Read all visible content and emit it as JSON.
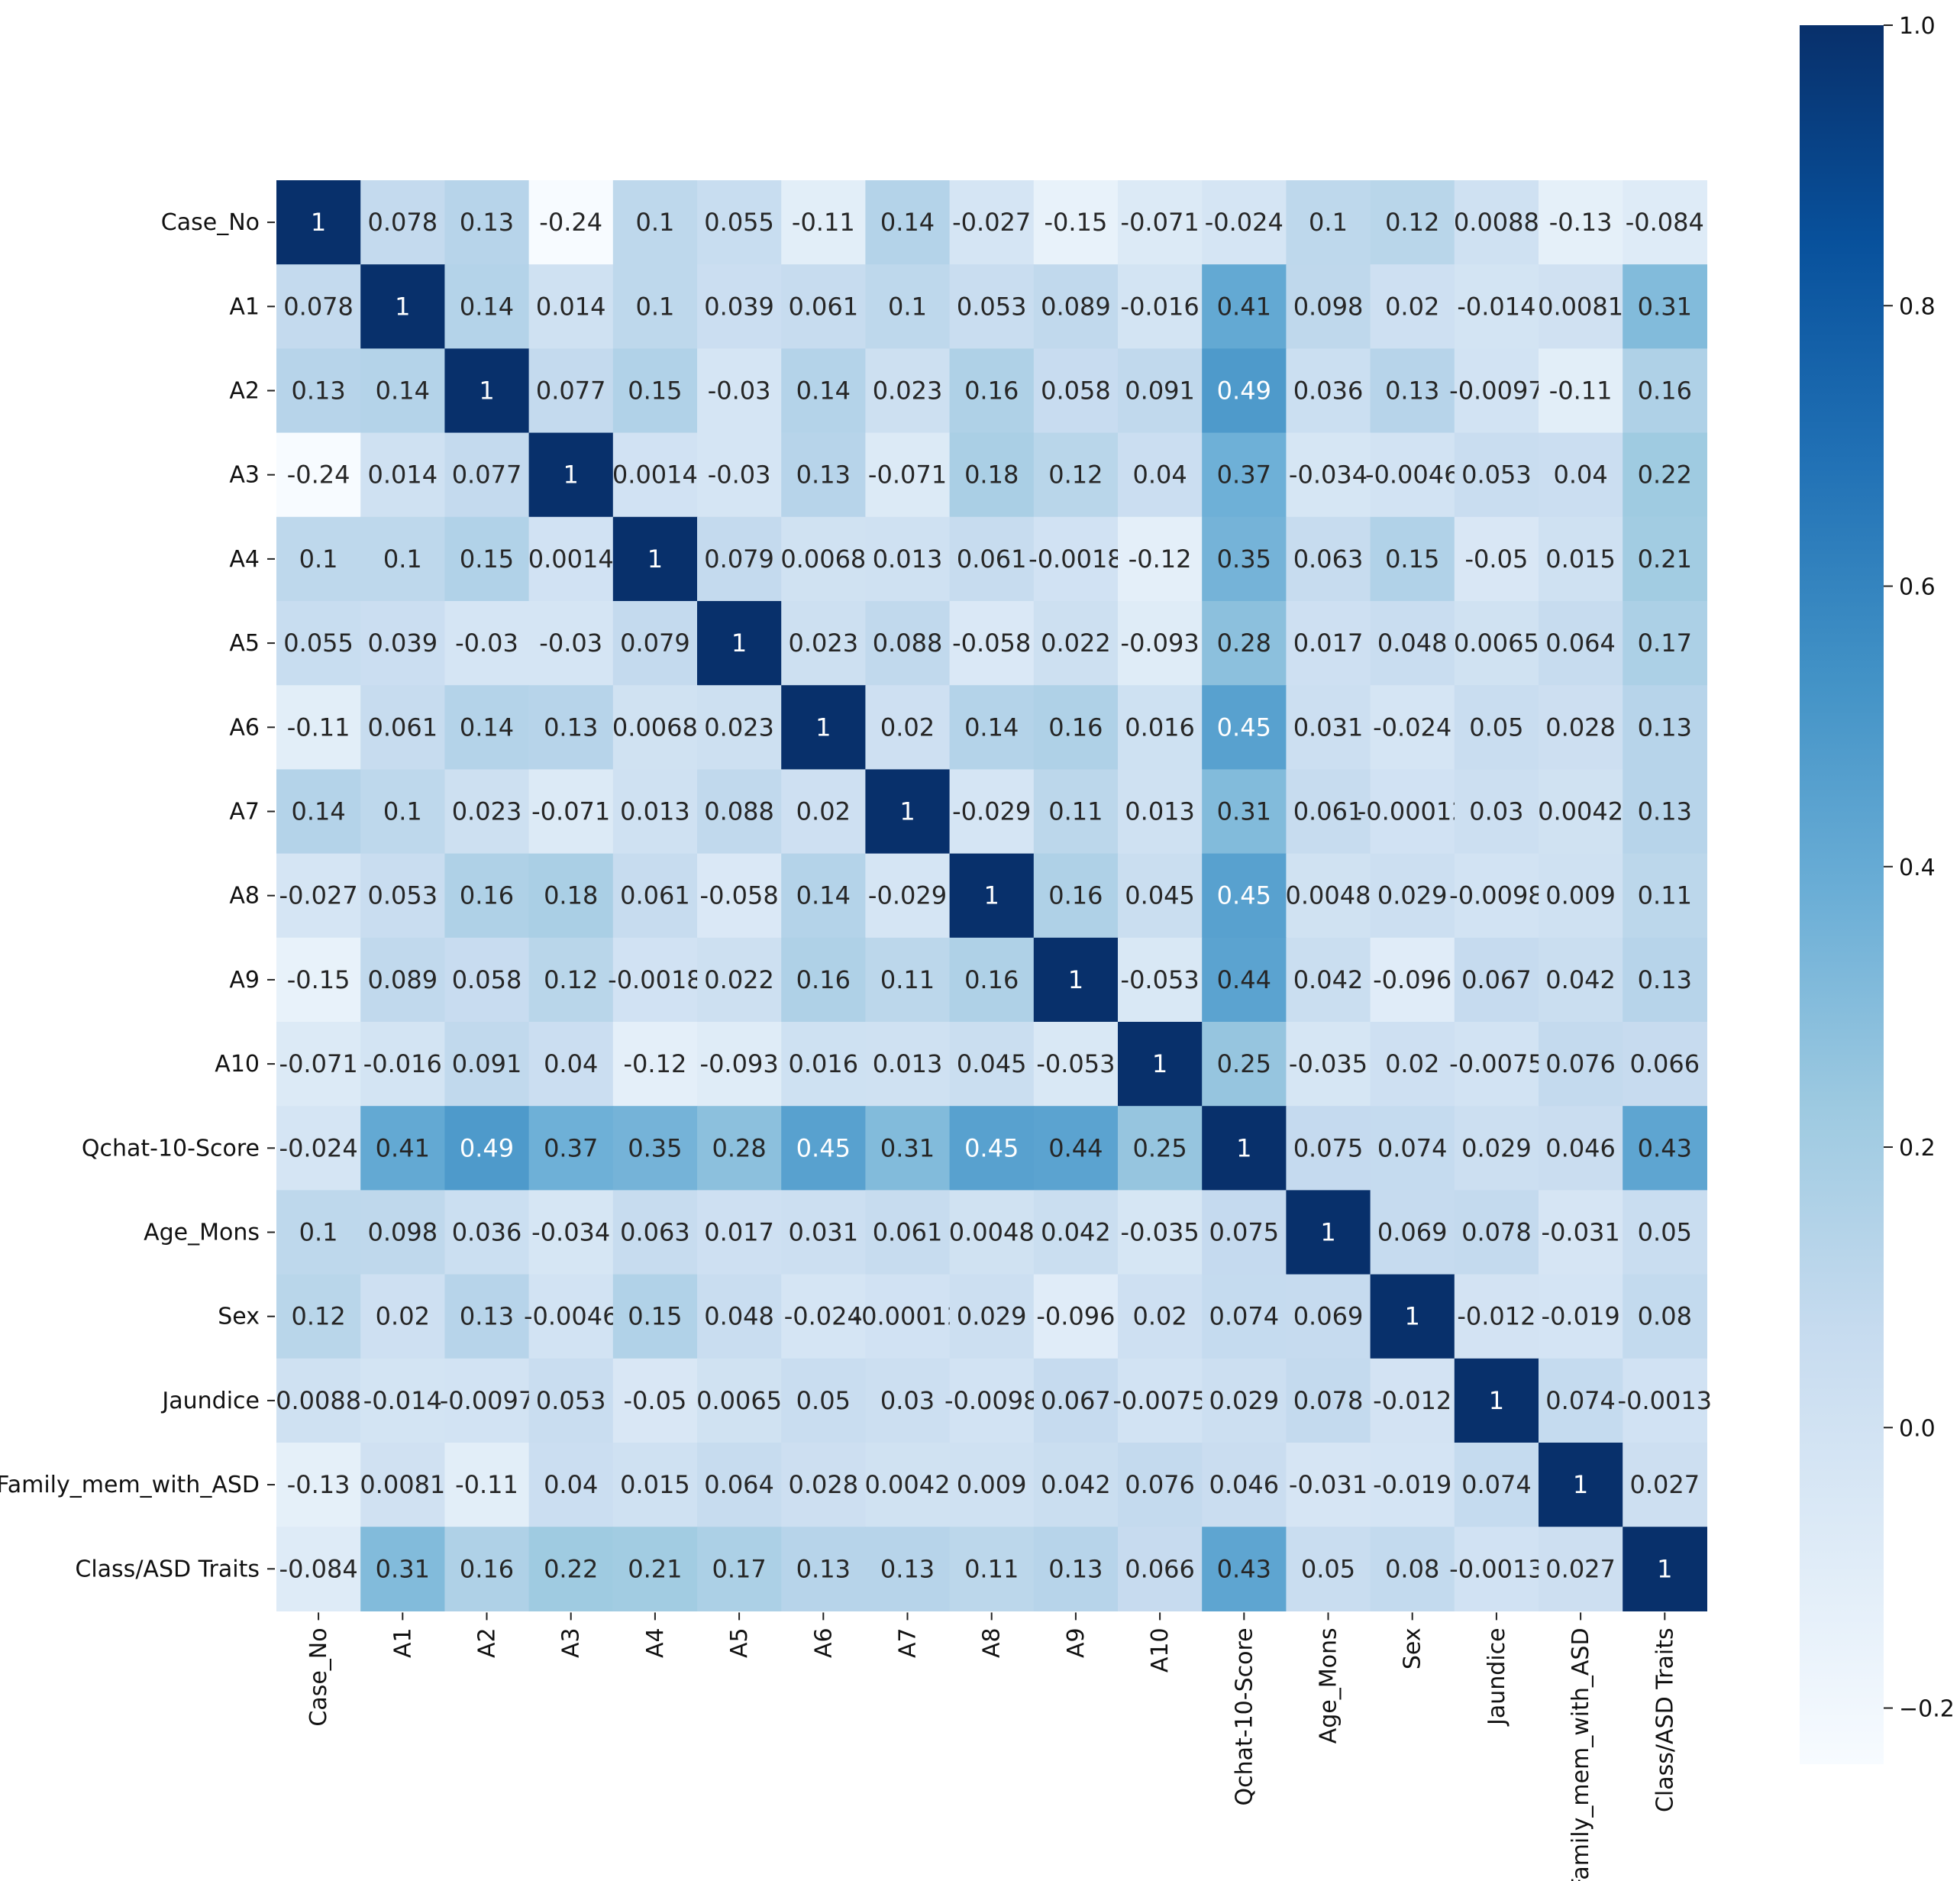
{
  "chart_data": {
    "type": "heatmap",
    "labels": [
      "Case_No",
      "A1",
      "A2",
      "A3",
      "A4",
      "A5",
      "A6",
      "A7",
      "A8",
      "A9",
      "A10",
      "Qchat-10-Score",
      "Age_Mons",
      "Sex",
      "Jaundice",
      "Family_mem_with_ASD",
      "Class/ASD Traits"
    ],
    "value_labels": [
      [
        "1",
        "0.078",
        "0.13",
        "-0.24",
        "0.1",
        "0.055",
        "-0.11",
        "0.14",
        "-0.027",
        "-0.15",
        "-0.071",
        "-0.024",
        "0.1",
        "0.12",
        "0.0088",
        "-0.13",
        "-0.084"
      ],
      [
        "0.078",
        "1",
        "0.14",
        "0.014",
        "0.1",
        "0.039",
        "0.061",
        "0.1",
        "0.053",
        "0.089",
        "-0.016",
        "0.41",
        "0.098",
        "0.02",
        "-0.014",
        "0.0081",
        "0.31"
      ],
      [
        "0.13",
        "0.14",
        "1",
        "0.077",
        "0.15",
        "-0.03",
        "0.14",
        "0.023",
        "0.16",
        "0.058",
        "0.091",
        "0.49",
        "0.036",
        "0.13",
        "-0.0097",
        "-0.11",
        "0.16"
      ],
      [
        "-0.24",
        "0.014",
        "0.077",
        "1",
        "0.0014",
        "-0.03",
        "0.13",
        "-0.071",
        "0.18",
        "0.12",
        "0.04",
        "0.37",
        "-0.034",
        "-0.0046",
        "0.053",
        "0.04",
        "0.22"
      ],
      [
        "0.1",
        "0.1",
        "0.15",
        "0.0014",
        "1",
        "0.079",
        "0.0068",
        "0.013",
        "0.061",
        "-0.0018",
        "-0.12",
        "0.35",
        "0.063",
        "0.15",
        "-0.05",
        "0.015",
        "0.21"
      ],
      [
        "0.055",
        "0.039",
        "-0.03",
        "-0.03",
        "0.079",
        "1",
        "0.023",
        "0.088",
        "-0.058",
        "0.022",
        "-0.093",
        "0.28",
        "0.017",
        "0.048",
        "0.0065",
        "0.064",
        "0.17"
      ],
      [
        "-0.11",
        "0.061",
        "0.14",
        "0.13",
        "0.0068",
        "0.023",
        "1",
        "0.02",
        "0.14",
        "0.16",
        "0.016",
        "0.45",
        "0.031",
        "-0.024",
        "0.05",
        "0.028",
        "0.13"
      ],
      [
        "0.14",
        "0.1",
        "0.023",
        "-0.071",
        "0.013",
        "0.088",
        "0.02",
        "1",
        "-0.029",
        "0.11",
        "0.013",
        "0.31",
        "0.061",
        "-0.00012",
        "0.03",
        "0.0042",
        "0.13"
      ],
      [
        "-0.027",
        "0.053",
        "0.16",
        "0.18",
        "0.061",
        "-0.058",
        "0.14",
        "-0.029",
        "1",
        "0.16",
        "0.045",
        "0.45",
        "0.0048",
        "0.029",
        "-0.0098",
        "0.009",
        "0.11"
      ],
      [
        "-0.15",
        "0.089",
        "0.058",
        "0.12",
        "-0.0018",
        "0.022",
        "0.16",
        "0.11",
        "0.16",
        "1",
        "-0.053",
        "0.44",
        "0.042",
        "-0.096",
        "0.067",
        "0.042",
        "0.13"
      ],
      [
        "-0.071",
        "-0.016",
        "0.091",
        "0.04",
        "-0.12",
        "-0.093",
        "0.016",
        "0.013",
        "0.045",
        "-0.053",
        "1",
        "0.25",
        "-0.035",
        "0.02",
        "-0.0075",
        "0.076",
        "0.066"
      ],
      [
        "-0.024",
        "0.41",
        "0.49",
        "0.37",
        "0.35",
        "0.28",
        "0.45",
        "0.31",
        "0.45",
        "0.44",
        "0.25",
        "1",
        "0.075",
        "0.074",
        "0.029",
        "0.046",
        "0.43"
      ],
      [
        "0.1",
        "0.098",
        "0.036",
        "-0.034",
        "0.063",
        "0.017",
        "0.031",
        "0.061",
        "0.0048",
        "0.042",
        "-0.035",
        "0.075",
        "1",
        "0.069",
        "0.078",
        "-0.031",
        "0.05"
      ],
      [
        "0.12",
        "0.02",
        "0.13",
        "-0.0046",
        "0.15",
        "0.048",
        "-0.024",
        "-0.00012",
        "0.029",
        "-0.096",
        "0.02",
        "0.074",
        "0.069",
        "1",
        "-0.012",
        "-0.019",
        "0.08"
      ],
      [
        "0.0088",
        "-0.014",
        "-0.0097",
        "0.053",
        "-0.05",
        "0.0065",
        "0.05",
        "0.03",
        "-0.0098",
        "0.067",
        "-0.0075",
        "0.029",
        "0.078",
        "-0.012",
        "1",
        "0.074",
        "-0.0013"
      ],
      [
        "-0.13",
        "0.0081",
        "-0.11",
        "0.04",
        "0.015",
        "0.064",
        "0.028",
        "0.0042",
        "0.009",
        "0.042",
        "0.076",
        "0.046",
        "-0.031",
        "-0.019",
        "0.074",
        "1",
        "0.027"
      ],
      [
        "-0.084",
        "0.31",
        "0.16",
        "0.22",
        "0.21",
        "0.17",
        "0.13",
        "0.13",
        "0.11",
        "0.13",
        "0.066",
        "0.43",
        "0.05",
        "0.08",
        "-0.0013",
        "0.027",
        "1"
      ]
    ],
    "color_range": [
      -0.24,
      1.0
    ],
    "colormap": "Blues",
    "colorbar_ticks": [
      "1.0",
      "0.8",
      "0.6",
      "0.4",
      "0.2",
      "0.0",
      "−0.2"
    ],
    "colorbar_tick_values": [
      1.0,
      0.8,
      0.6,
      0.4,
      0.2,
      0.0,
      -0.2
    ],
    "colors": [
      "#f7fbff",
      "#deebf7",
      "#c6dbef",
      "#9ecae1",
      "#6baed6",
      "#4292c6",
      "#2171b5",
      "#08519c",
      "#08306b"
    ]
  }
}
